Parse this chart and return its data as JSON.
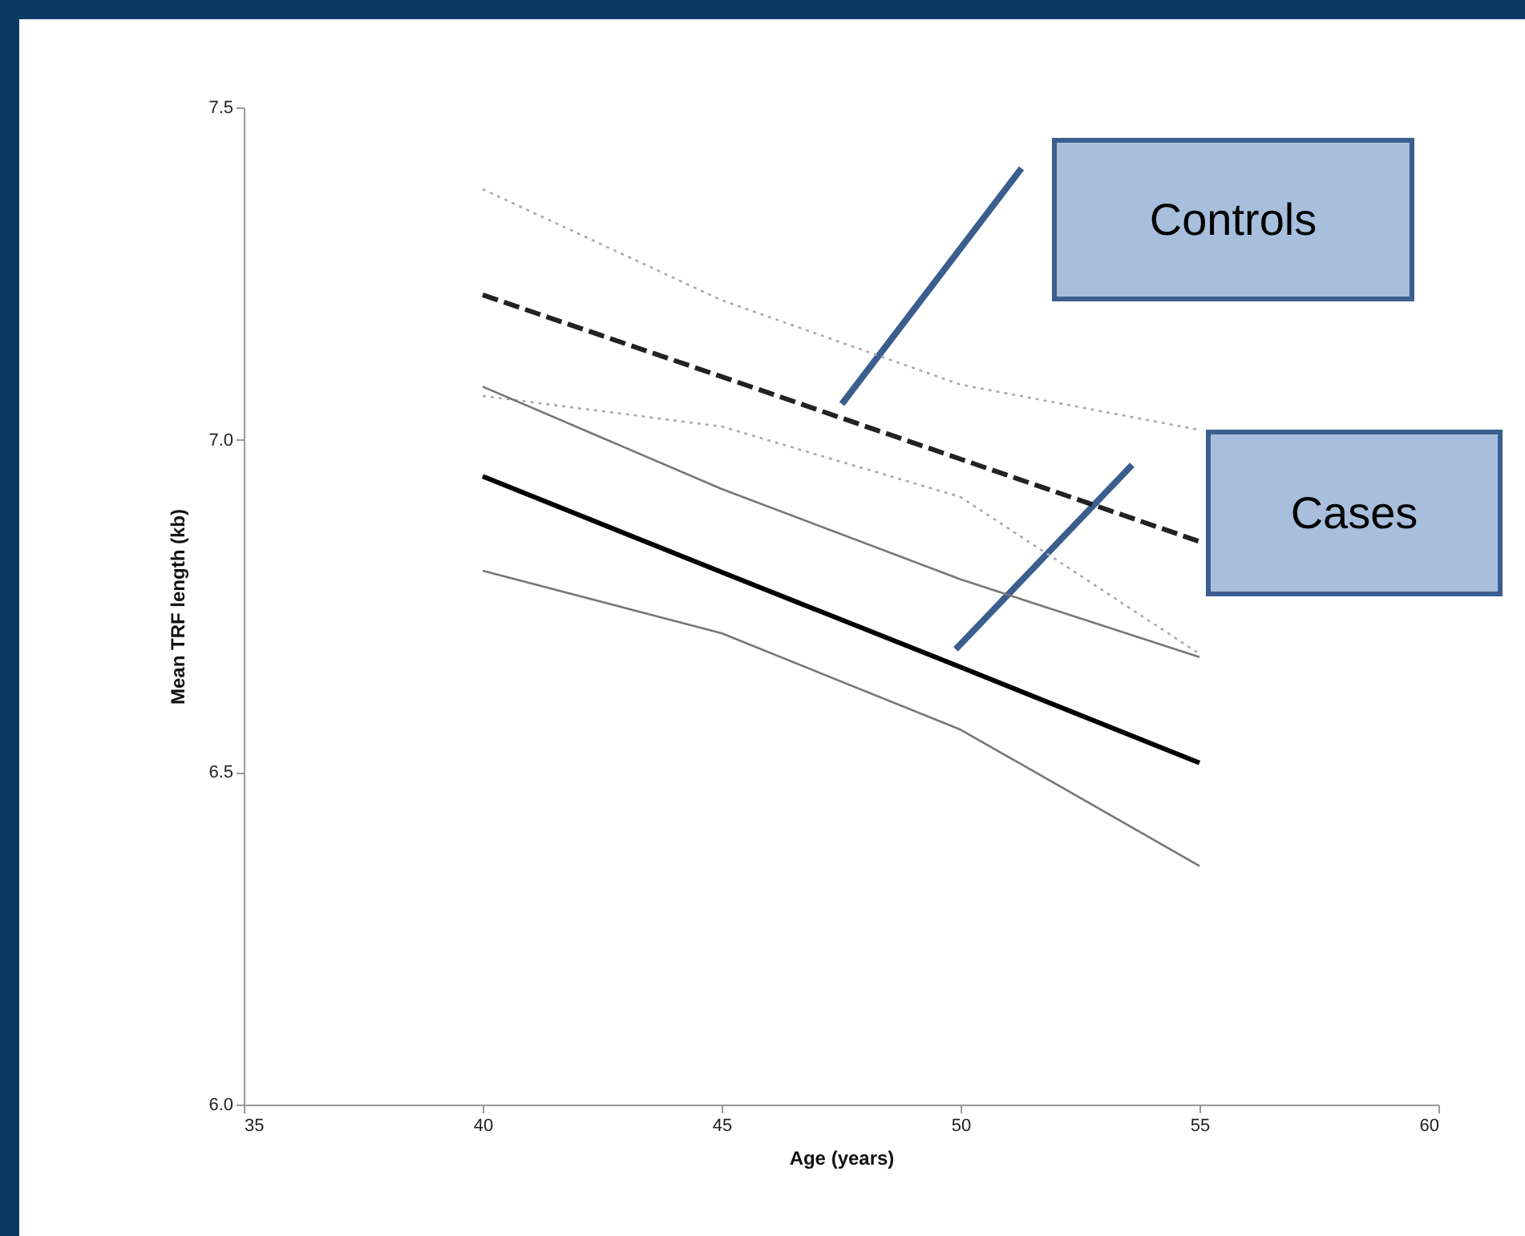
{
  "chart_data": {
    "type": "line",
    "xlabel": "Age (years)",
    "ylabel": "Mean TRF length (kb)",
    "x": [
      40,
      45,
      50,
      55
    ],
    "series": [
      {
        "color": "#222222",
        "line_style": "dashed",
        "values": [
          7.218,
          7.095,
          6.971,
          6.847
        ]
      },
      {
        "color": "#aaaaaa",
        "line_style": "dotted",
        "values": [
          7.377,
          7.21,
          7.083,
          7.015
        ]
      },
      {
        "color": "#aaaaaa",
        "line_style": "dotted",
        "values": [
          7.066,
          7.02,
          6.914,
          6.678
        ]
      },
      {
        "color": "#000000",
        "line_style": "solid",
        "values": [
          6.945,
          6.801,
          6.658,
          6.514
        ]
      },
      {
        "color": "#777777",
        "line_style": "solid",
        "values": [
          7.08,
          6.926,
          6.79,
          6.673
        ]
      },
      {
        "color": "#777777",
        "line_style": "solid",
        "values": [
          6.803,
          6.709,
          6.564,
          6.359
        ]
      }
    ],
    "xlim": [
      35,
      60
    ],
    "xticks": [
      35,
      40,
      45,
      50,
      55,
      60
    ],
    "ylim": [
      6.0,
      7.5
    ],
    "yticks": [
      {
        "value": 6,
        "label": "6.0"
      },
      6.5,
      {
        "value": 7,
        "label": "7.0"
      },
      7.5
    ],
    "annotations": [
      "Controls",
      "Cases"
    ],
    "grid": false
  }
}
